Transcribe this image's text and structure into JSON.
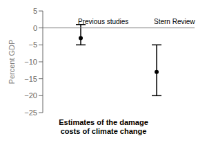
{
  "chart_data": {
    "type": "errorbar",
    "title": "Estimates of the damage\ncosts of climate change",
    "categories": [
      "Previous studies",
      "Stern Review"
    ],
    "values": [
      -3,
      -13
    ],
    "highs": [
      1,
      -5
    ],
    "lows": [
      -5,
      -20
    ],
    "color": "#000000",
    "ylabel": "Percent GDP",
    "ylim": [
      -25,
      5
    ],
    "yticks": [
      5,
      0,
      {
        "value": -5,
        "label": "−5"
      },
      {
        "value": -10,
        "label": "−10"
      },
      {
        "value": -15,
        "label": "−15"
      },
      {
        "value": -20,
        "label": "−20"
      },
      {
        "value": -25,
        "label": "−25"
      }
    ],
    "hline": 0,
    "grid": false
  }
}
